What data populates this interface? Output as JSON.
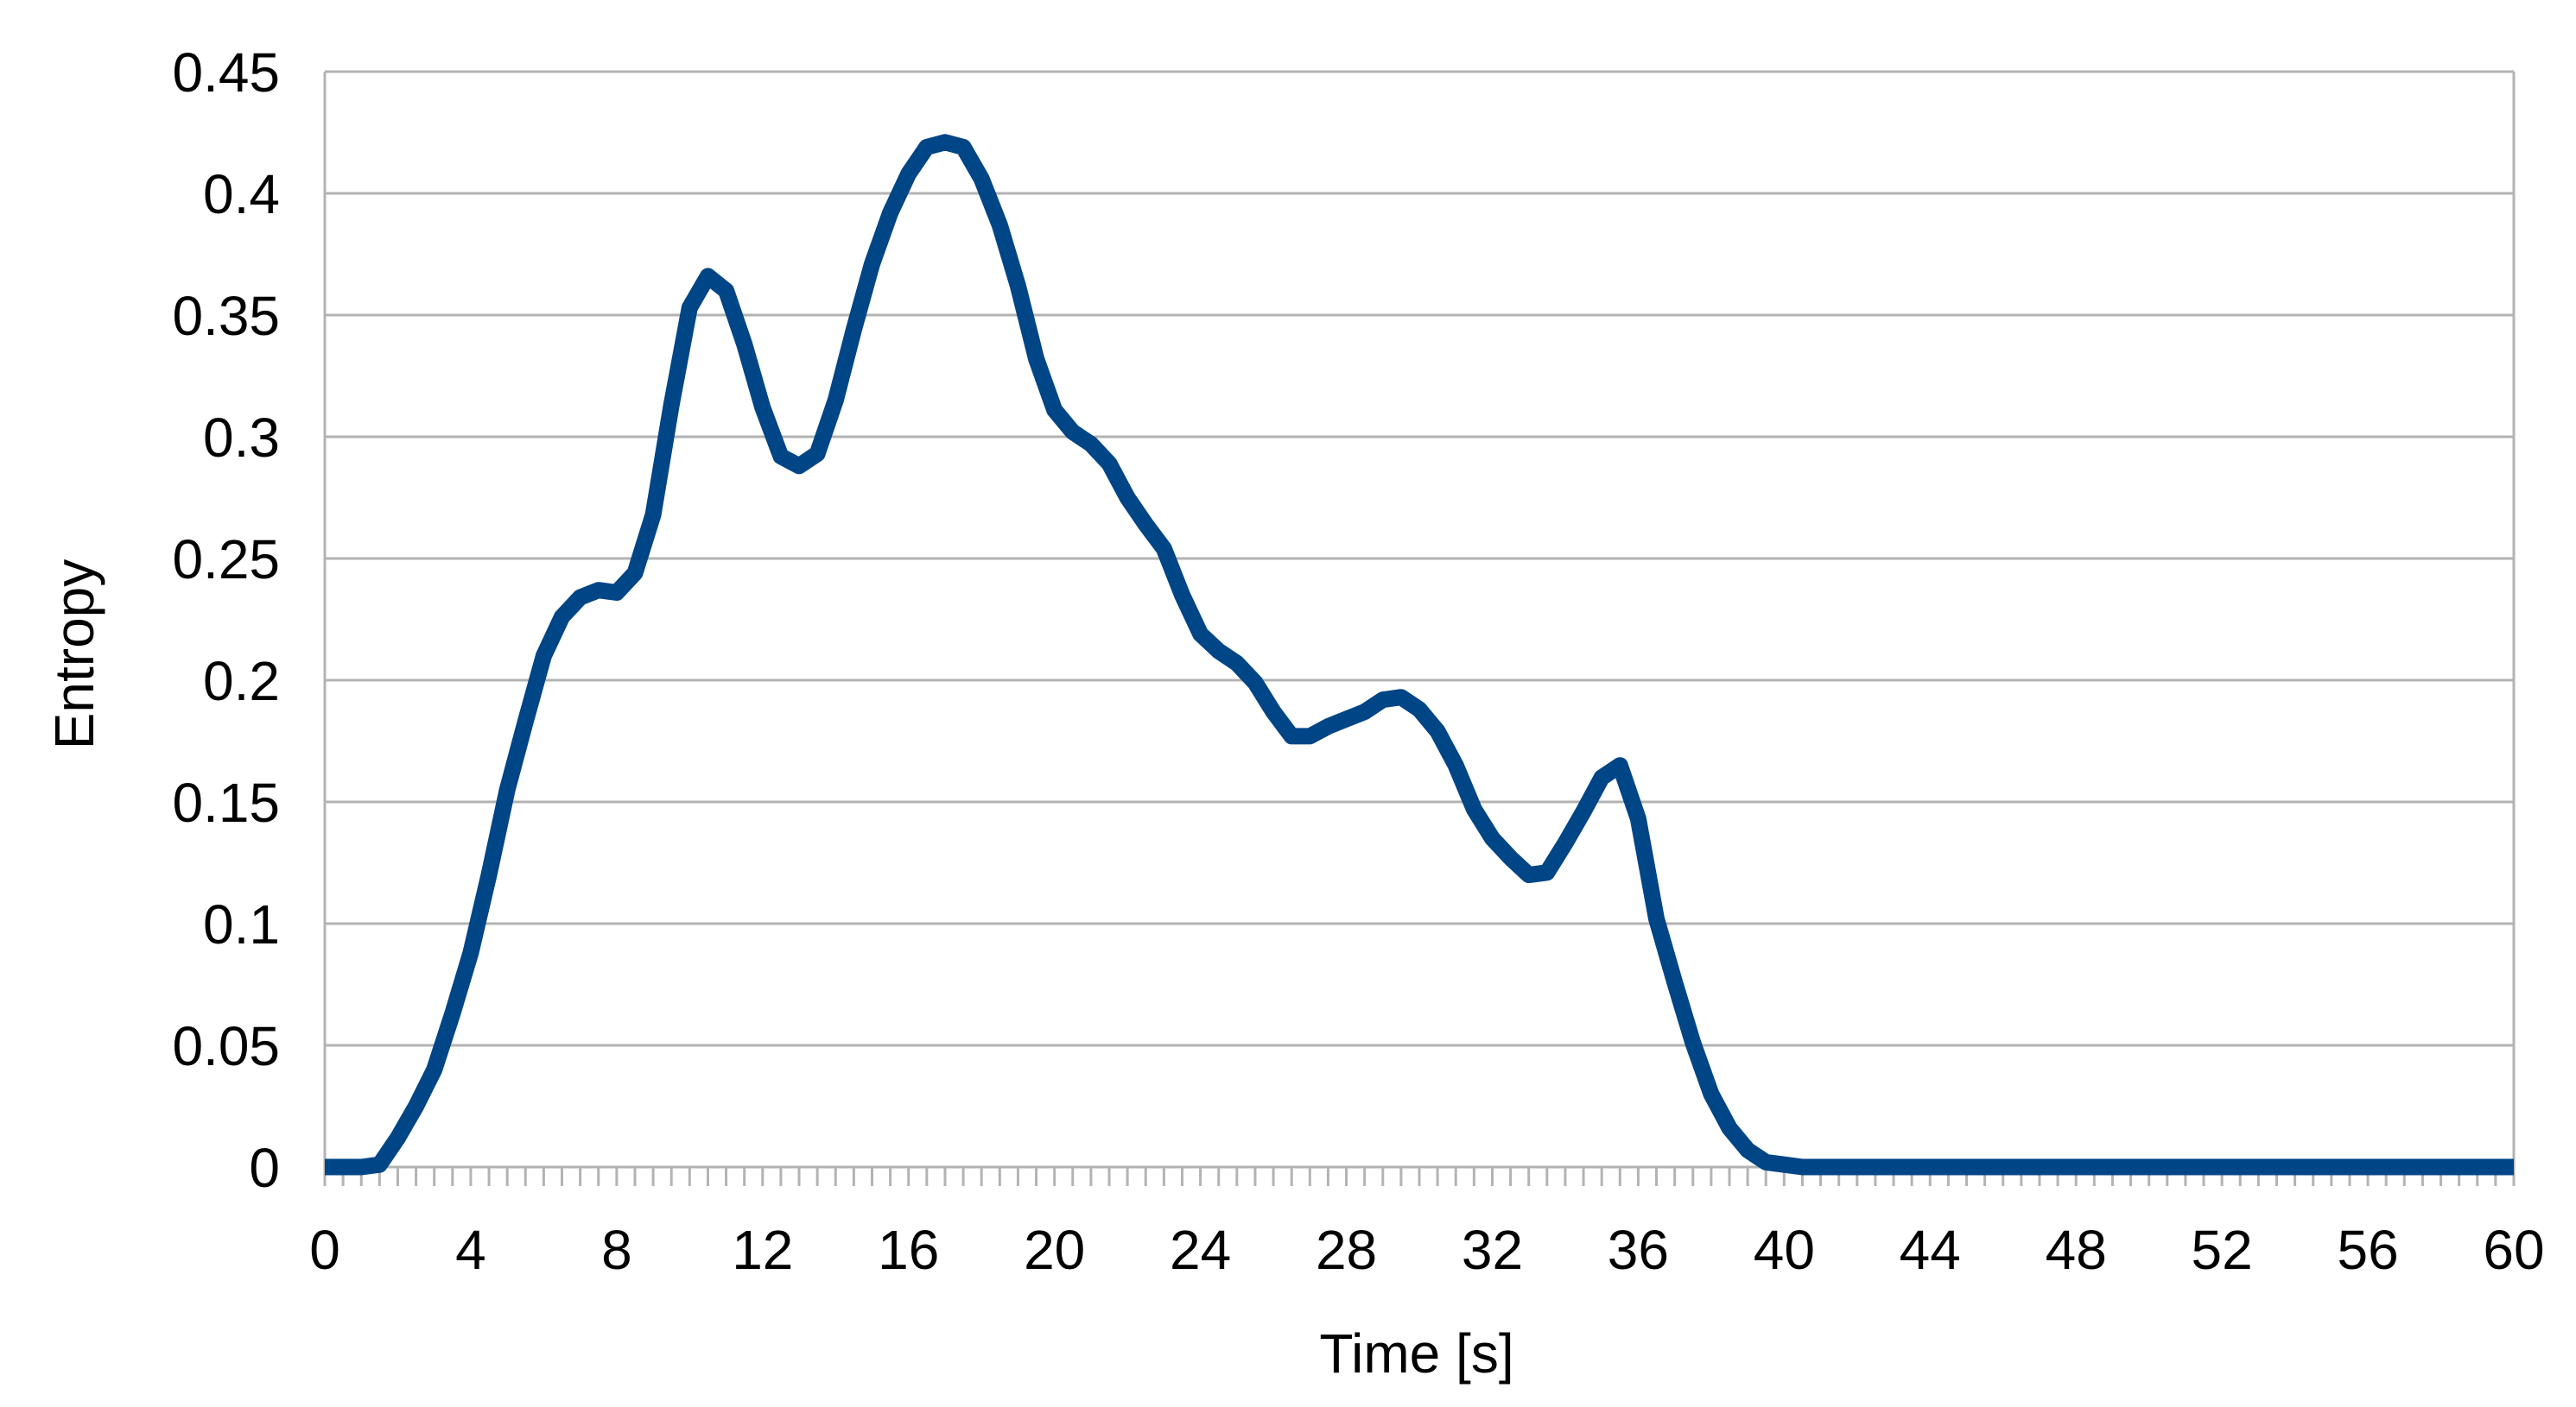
{
  "chart_data": {
    "type": "line",
    "title": "",
    "xlabel": "Time [s]",
    "ylabel": "Entropy",
    "xlim": [
      0,
      60
    ],
    "ylim": [
      0,
      0.45
    ],
    "x_ticks": [
      "0",
      "4",
      "8",
      "12",
      "16",
      "20",
      "24",
      "28",
      "32",
      "36",
      "40",
      "44",
      "48",
      "52",
      "56",
      "60"
    ],
    "y_ticks": [
      "0",
      "0.05",
      "0.1",
      "0.15",
      "0.2",
      "0.25",
      "0.3",
      "0.35",
      "0.4",
      "0.45"
    ],
    "grid": "horizontal",
    "legend": "none",
    "line_color": "#004586",
    "series": [
      {
        "x": [
          0,
          0.5,
          1,
          1.5,
          2,
          2.5,
          3,
          3.5,
          4,
          4.5,
          5,
          5.5,
          6,
          6.5,
          7,
          7.5,
          8,
          8.5,
          9,
          9.5,
          10,
          10.5,
          11,
          11.5,
          12,
          12.5,
          13,
          13.5,
          14,
          14.5,
          15,
          15.5,
          16,
          16.5,
          17,
          17.5,
          18,
          18.5,
          19,
          19.5,
          20,
          20.5,
          21,
          21.5,
          22,
          22.5,
          23,
          23.5,
          24,
          24.5,
          25,
          25.5,
          26,
          26.5,
          27,
          27.5,
          28,
          28.5,
          29,
          29.5,
          30,
          30.5,
          31,
          31.5,
          32,
          32.5,
          33,
          33.5,
          34,
          34.5,
          35,
          35.5,
          36,
          36.5,
          37,
          37.5,
          38,
          38.5,
          39,
          39.5,
          40,
          40.5,
          41,
          42,
          44,
          48,
          52,
          56,
          60
        ],
        "values": [
          0,
          0,
          0,
          0.001,
          0.012,
          0.025,
          0.04,
          0.063,
          0.088,
          0.12,
          0.155,
          0.183,
          0.21,
          0.226,
          0.234,
          0.237,
          0.236,
          0.244,
          0.268,
          0.313,
          0.353,
          0.366,
          0.36,
          0.338,
          0.312,
          0.292,
          0.288,
          0.293,
          0.315,
          0.344,
          0.371,
          0.392,
          0.408,
          0.419,
          0.421,
          0.419,
          0.406,
          0.387,
          0.362,
          0.332,
          0.311,
          0.302,
          0.297,
          0.289,
          0.275,
          0.264,
          0.254,
          0.235,
          0.219,
          0.212,
          0.207,
          0.199,
          0.187,
          0.177,
          0.177,
          0.181,
          0.184,
          0.187,
          0.192,
          0.193,
          0.188,
          0.179,
          0.165,
          0.147,
          0.135,
          0.127,
          0.12,
          0.121,
          0.133,
          0.146,
          0.16,
          0.165,
          0.143,
          0.102,
          0.076,
          0.051,
          0.03,
          0.016,
          0.007,
          0.002,
          0.001,
          0,
          0,
          0,
          0,
          0,
          0,
          0,
          0
        ]
      }
    ]
  }
}
